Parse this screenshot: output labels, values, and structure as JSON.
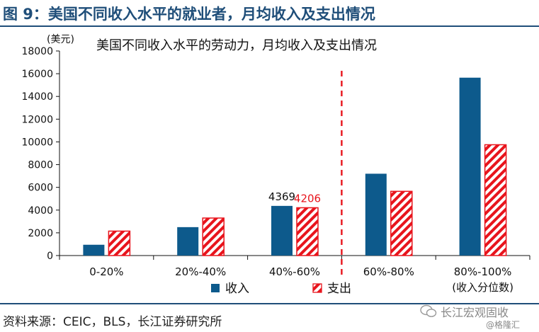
{
  "page": {
    "figure_title": "图 9：美国不同收入水平的就业者，月均收入及支出情况",
    "source": "资料来源：CEIC，BLS，长江证券研究所",
    "watermark_main": "长江宏观固收",
    "watermark_sub": "@格隆汇"
  },
  "colors": {
    "income": "#0d5a8c",
    "expense": "#e8141c",
    "heading": "#1f4e79",
    "divider": "#e8141c"
  },
  "chart_data": {
    "type": "bar",
    "title": "美国不同收入水平的劳动力，月均收入及支出情况",
    "ylabel": "(美元)",
    "xlabel": "",
    "ylim": [
      0,
      18000
    ],
    "yticks": [
      0,
      2000,
      4000,
      6000,
      8000,
      10000,
      12000,
      14000,
      16000,
      18000
    ],
    "categories": [
      "0-20%",
      "20%-40%",
      "40%-60%",
      "60%-80%",
      "80%-100%"
    ],
    "category_note": "(收入分位数)",
    "series": [
      {
        "name": "收入",
        "key": "income",
        "fill": "solid",
        "values": [
          950,
          2500,
          4369,
          7200,
          15650
        ]
      },
      {
        "name": "支出",
        "key": "expense",
        "fill": "hatched",
        "values": [
          2150,
          3300,
          4206,
          5650,
          9750
        ]
      }
    ],
    "data_labels": [
      {
        "series": 0,
        "category": 2,
        "text": "4369"
      },
      {
        "series": 1,
        "category": 2,
        "text": "4206"
      }
    ],
    "divider_between": [
      2,
      3
    ],
    "legend_position": "bottom",
    "grid": false
  }
}
